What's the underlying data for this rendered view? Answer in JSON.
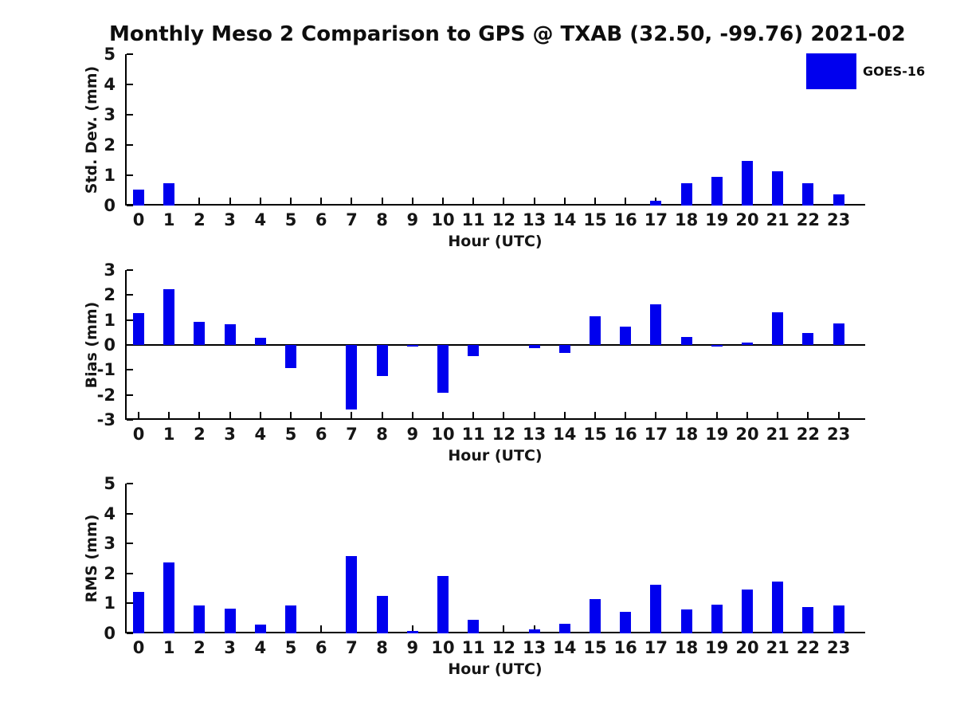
{
  "title": "Monthly Meso 2 Comparison to GPS @ TXAB (32.50, -99.76) 2021-02",
  "legend": {
    "label": "GOES-16",
    "position": "upper right"
  },
  "colors": {
    "bar": "#0000ee",
    "axis": "#000000",
    "text": "#151515",
    "background": "#ffffff"
  },
  "xlabel": "Hour (UTC)",
  "chart_data": [
    {
      "type": "bar",
      "id": "stddev",
      "series_name": "GOES-16",
      "ylabel": "Std. Dev. (mm)",
      "xlabel": "Hour (UTC)",
      "categories": [
        0,
        1,
        2,
        3,
        4,
        5,
        6,
        7,
        8,
        9,
        10,
        11,
        12,
        13,
        14,
        15,
        16,
        17,
        18,
        19,
        20,
        21,
        22,
        23
      ],
      "values": [
        0.53,
        0.73,
        0,
        0,
        0,
        0,
        0,
        0,
        0,
        0,
        0,
        0,
        0,
        0,
        0,
        0,
        0,
        0.15,
        0.74,
        0.95,
        1.47,
        1.12,
        0.75,
        0.38
      ],
      "ylim": [
        0,
        5
      ],
      "yticks": [
        0,
        1,
        2,
        3,
        4,
        5
      ],
      "grid": false
    },
    {
      "type": "bar",
      "id": "bias",
      "series_name": "GOES-16",
      "ylabel": "Bias (mm)",
      "xlabel": "Hour (UTC)",
      "categories": [
        0,
        1,
        2,
        3,
        4,
        5,
        6,
        7,
        8,
        9,
        10,
        11,
        12,
        13,
        14,
        15,
        16,
        17,
        18,
        19,
        20,
        21,
        22,
        23
      ],
      "values": [
        1.27,
        2.25,
        0.93,
        0.82,
        0.29,
        -0.93,
        0,
        -2.58,
        -1.24,
        -0.05,
        -1.91,
        -0.44,
        0,
        -0.14,
        -0.31,
        1.15,
        0.72,
        1.62,
        0.33,
        -0.05,
        0.09,
        1.3,
        0.48,
        0.85
      ],
      "ylim": [
        -3,
        3
      ],
      "yticks": [
        -3,
        -2,
        -1,
        0,
        1,
        2,
        3
      ],
      "grid": false
    },
    {
      "type": "bar",
      "id": "rms",
      "series_name": "GOES-16",
      "ylabel": "RMS (mm)",
      "xlabel": "Hour (UTC)",
      "categories": [
        0,
        1,
        2,
        3,
        4,
        5,
        6,
        7,
        8,
        9,
        10,
        11,
        12,
        13,
        14,
        15,
        16,
        17,
        18,
        19,
        20,
        21,
        22,
        23
      ],
      "values": [
        1.38,
        2.36,
        0.93,
        0.82,
        0.29,
        0.93,
        0,
        2.58,
        1.24,
        0.07,
        1.91,
        0.44,
        0,
        0.14,
        0.31,
        1.15,
        0.72,
        1.63,
        0.81,
        0.95,
        1.47,
        1.72,
        0.89,
        0.93
      ],
      "ylim": [
        0,
        5
      ],
      "yticks": [
        0,
        1,
        2,
        3,
        4,
        5
      ],
      "grid": false
    }
  ]
}
